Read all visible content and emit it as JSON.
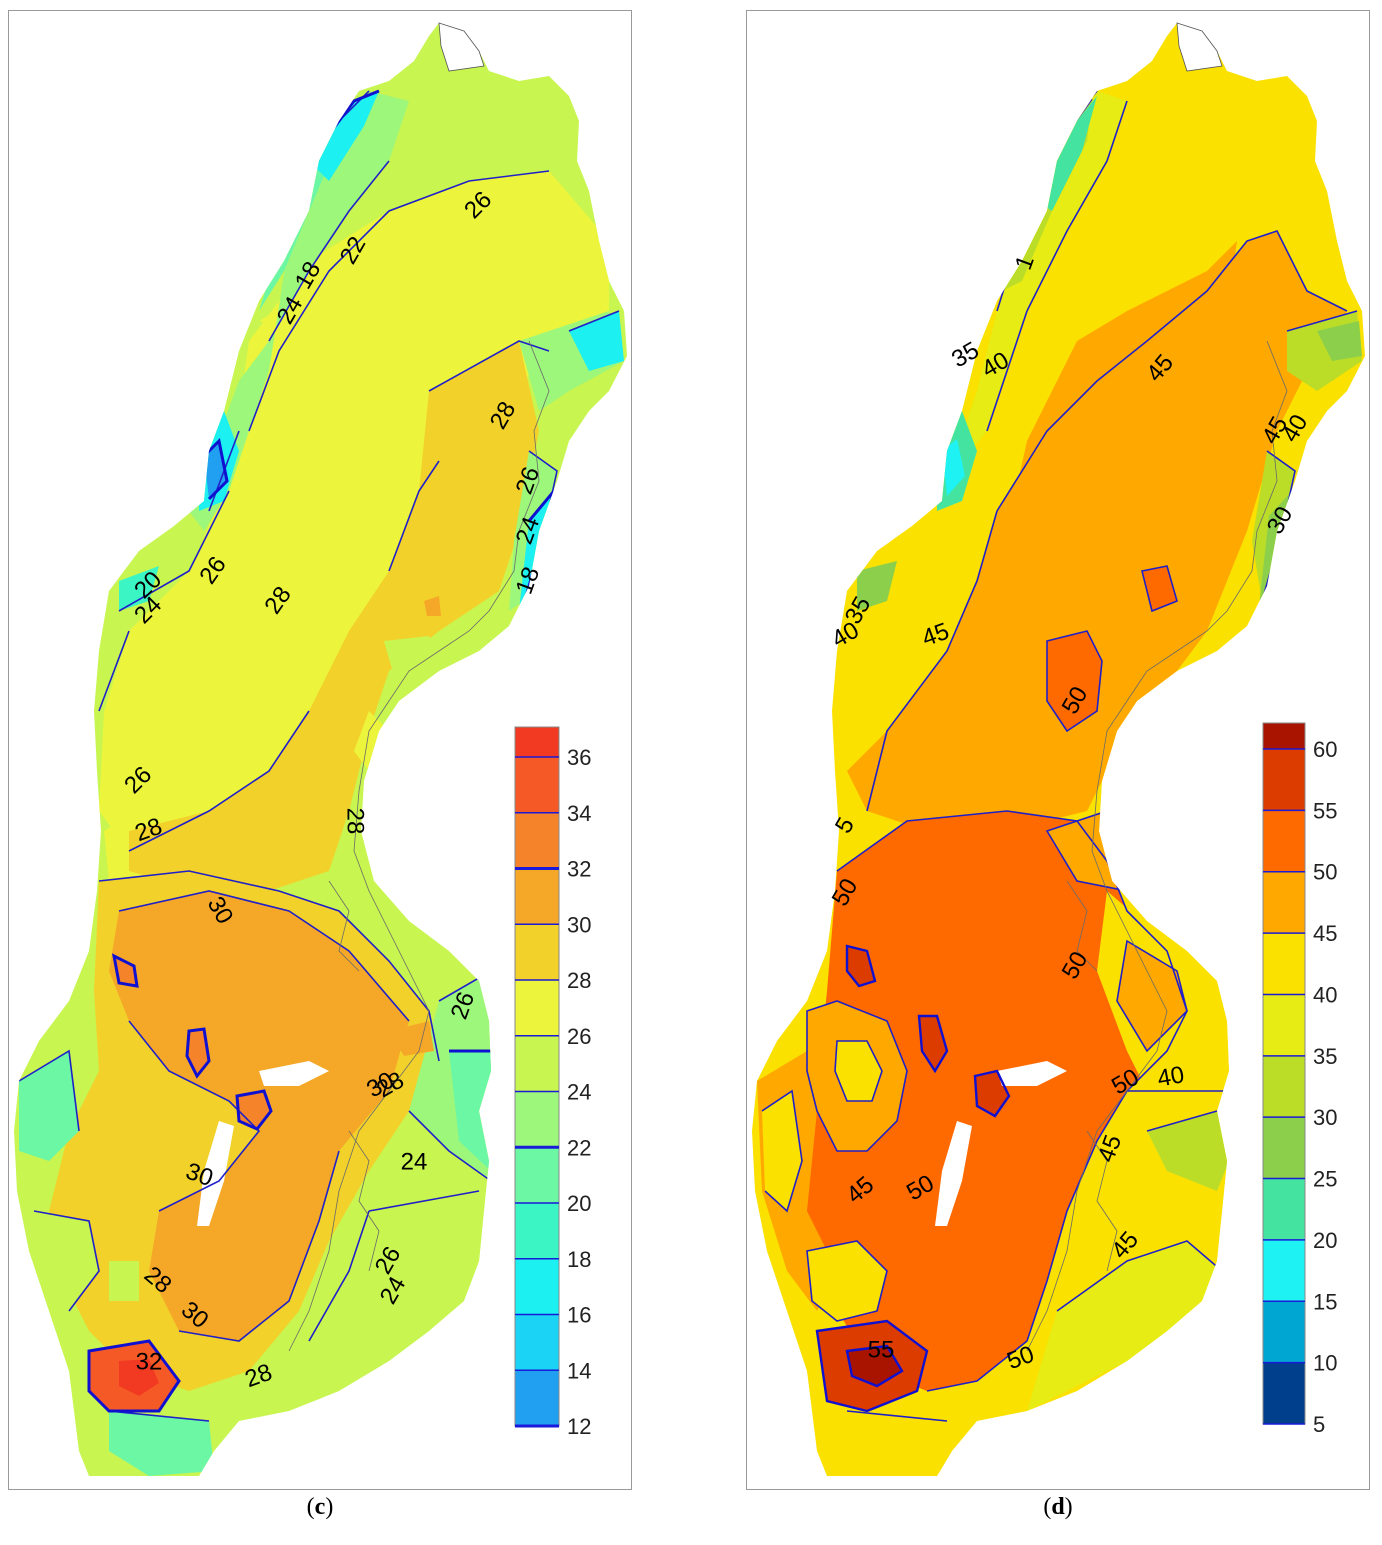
{
  "panels": [
    {
      "id": "c",
      "caption_letter": "c",
      "colorbar": {
        "levels": [
          12,
          14,
          16,
          18,
          20,
          22,
          24,
          26,
          28,
          30,
          32,
          34,
          36
        ],
        "bands": [
          "#21a0f2",
          "#1ad3f5",
          "#1cf0f0",
          "#3cf5c4",
          "#6cf7a4",
          "#9cf77a",
          "#c8f550",
          "#ecf53c",
          "#f2d22a",
          "#f5a828",
          "#f5832a",
          "#f55a26",
          "#f23a22"
        ],
        "emphasized_levels": [
          12,
          22,
          32
        ]
      },
      "contour_labels": [
        {
          "text": "26",
          "rot": -45
        },
        {
          "text": "22",
          "rot": -60
        },
        {
          "text": "18",
          "rot": -60
        },
        {
          "text": "24",
          "rot": -60
        },
        {
          "text": "28",
          "rot": -60
        },
        {
          "text": "26",
          "rot": -70
        },
        {
          "text": "24",
          "rot": -70
        },
        {
          "text": "18",
          "rot": -70
        },
        {
          "text": "20",
          "rot": -45
        },
        {
          "text": "24",
          "rot": -45
        },
        {
          "text": "26",
          "rot": -55
        },
        {
          "text": "28",
          "rot": -55
        },
        {
          "text": "26",
          "rot": -45
        },
        {
          "text": "28",
          "rot": -20
        },
        {
          "text": "28",
          "rot": 90
        },
        {
          "text": "30",
          "rot": 60
        },
        {
          "text": "26",
          "rot": -70
        },
        {
          "text": "30",
          "rot": -30
        },
        {
          "text": "28",
          "rot": -30
        },
        {
          "text": "24",
          "rot": 0
        },
        {
          "text": "30",
          "rot": 20
        },
        {
          "text": "26",
          "rot": -60
        },
        {
          "text": "24",
          "rot": -60
        },
        {
          "text": "28",
          "rot": 40
        },
        {
          "text": "30",
          "rot": 40
        },
        {
          "text": "32",
          "rot": 0
        },
        {
          "text": "28",
          "rot": -20
        }
      ]
    },
    {
      "id": "d",
      "caption_letter": "d",
      "colorbar": {
        "levels": [
          5,
          10,
          15,
          20,
          25,
          30,
          35,
          40,
          45,
          50,
          55,
          60
        ],
        "bands": [
          "#003f8c",
          "#00a6d2",
          "#1ff2f2",
          "#44e4a0",
          "#8ccf4a",
          "#bcdd28",
          "#e6ec14",
          "#fae100",
          "#ffa800",
          "#ff6a00",
          "#dc3c00",
          "#a81400"
        ],
        "emphasized_levels": []
      },
      "contour_labels": [
        {
          "text": "1",
          "rot": -70
        },
        {
          "text": "35",
          "rot": -30
        },
        {
          "text": "40",
          "rot": -30
        },
        {
          "text": "45",
          "rot": -50
        },
        {
          "text": "45",
          "rot": -60
        },
        {
          "text": "40",
          "rot": -60
        },
        {
          "text": "30",
          "rot": -60
        },
        {
          "text": "35",
          "rot": -60
        },
        {
          "text": "40",
          "rot": -30
        },
        {
          "text": "45",
          "rot": -20
        },
        {
          "text": "50",
          "rot": -60
        },
        {
          "text": "5",
          "rot": -60
        },
        {
          "text": "50",
          "rot": -60
        },
        {
          "text": "50",
          "rot": -60
        },
        {
          "text": "50",
          "rot": -30
        },
        {
          "text": "40",
          "rot": -10
        },
        {
          "text": "45",
          "rot": -70
        },
        {
          "text": "45",
          "rot": -40
        },
        {
          "text": "50",
          "rot": -30
        },
        {
          "text": "45",
          "rot": -50
        },
        {
          "text": "55",
          "rot": 0
        },
        {
          "text": "50",
          "rot": -20
        }
      ]
    }
  ]
}
